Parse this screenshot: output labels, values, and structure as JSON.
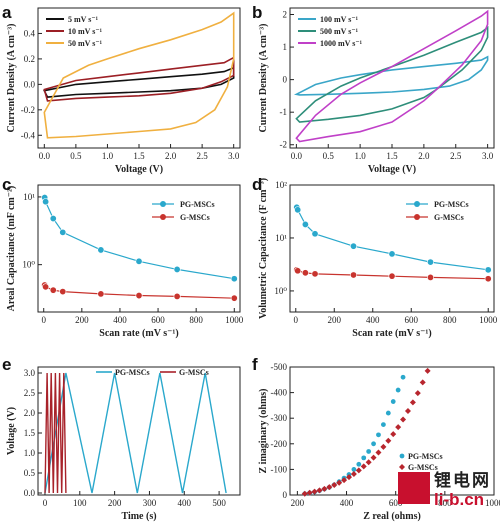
{
  "watermark": {
    "cn": "锂电网",
    "en": "li-b.cn"
  },
  "chart_data": [
    {
      "panel": "a",
      "type": "line",
      "subtype": "cv-loop",
      "xlabel": "Voltage (V)",
      "ylabel": "Current Density (A cm⁻³)",
      "xlim": [
        -0.1,
        3.1
      ],
      "ylim": [
        -0.5,
        0.6
      ],
      "xticks": [
        0.0,
        0.5,
        1.0,
        1.5,
        2.0,
        2.5,
        3.0
      ],
      "yticks": [
        -0.4,
        -0.2,
        0.0,
        0.2,
        0.4
      ],
      "legend_position": "top-left",
      "series": [
        {
          "name": "5 mV s⁻¹",
          "color": "#111111",
          "upper": [
            [
              0,
              -0.05
            ],
            [
              0.5,
              0.0
            ],
            [
              1.0,
              0.02
            ],
            [
              1.5,
              0.04
            ],
            [
              2.0,
              0.06
            ],
            [
              2.5,
              0.08
            ],
            [
              2.85,
              0.1
            ],
            [
              3.0,
              0.13
            ]
          ],
          "lower": [
            [
              3.0,
              0.05
            ],
            [
              2.8,
              0.0
            ],
            [
              2.5,
              -0.03
            ],
            [
              2.0,
              -0.05
            ],
            [
              1.5,
              -0.06
            ],
            [
              1.0,
              -0.07
            ],
            [
              0.5,
              -0.08
            ],
            [
              0.05,
              -0.1
            ],
            [
              0,
              -0.05
            ]
          ]
        },
        {
          "name": "10 mV s⁻¹",
          "color": "#9c1f25",
          "upper": [
            [
              0,
              -0.04
            ],
            [
              0.5,
              0.03
            ],
            [
              1.0,
              0.06
            ],
            [
              1.5,
              0.09
            ],
            [
              2.0,
              0.12
            ],
            [
              2.5,
              0.15
            ],
            [
              2.85,
              0.17
            ],
            [
              3.0,
              0.21
            ]
          ],
          "lower": [
            [
              3.0,
              0.07
            ],
            [
              2.8,
              0.02
            ],
            [
              2.5,
              -0.03
            ],
            [
              2.0,
              -0.07
            ],
            [
              1.5,
              -0.09
            ],
            [
              1.0,
              -0.1
            ],
            [
              0.5,
              -0.11
            ],
            [
              0.05,
              -0.13
            ],
            [
              0,
              -0.04
            ]
          ]
        },
        {
          "name": "50 mV s⁻¹",
          "color": "#f0b040",
          "upper": [
            [
              0,
              -0.22
            ],
            [
              0.3,
              0.05
            ],
            [
              0.7,
              0.15
            ],
            [
              1.0,
              0.2
            ],
            [
              1.5,
              0.28
            ],
            [
              2.0,
              0.35
            ],
            [
              2.5,
              0.43
            ],
            [
              2.8,
              0.49
            ],
            [
              3.0,
              0.56
            ]
          ],
          "lower": [
            [
              3.0,
              0.2
            ],
            [
              2.9,
              -0.02
            ],
            [
              2.7,
              -0.2
            ],
            [
              2.4,
              -0.3
            ],
            [
              2.0,
              -0.35
            ],
            [
              1.5,
              -0.37
            ],
            [
              1.0,
              -0.39
            ],
            [
              0.5,
              -0.41
            ],
            [
              0.05,
              -0.42
            ],
            [
              0,
              -0.22
            ]
          ]
        }
      ]
    },
    {
      "panel": "b",
      "type": "line",
      "subtype": "cv-loop",
      "xlabel": "Voltage (V)",
      "ylabel": "Current Density (A cm⁻³)",
      "xlim": [
        -0.1,
        3.1
      ],
      "ylim": [
        -2.1,
        2.2
      ],
      "xticks": [
        0.0,
        0.5,
        1.0,
        1.5,
        2.0,
        2.5,
        3.0
      ],
      "yticks": [
        -2,
        -1,
        0,
        1,
        2
      ],
      "legend_position": "top-left",
      "series": [
        {
          "name": "100 mV s⁻¹",
          "color": "#3aa6c8",
          "upper": [
            [
              0,
              -0.45
            ],
            [
              0.3,
              -0.15
            ],
            [
              0.7,
              0.05
            ],
            [
              1.0,
              0.15
            ],
            [
              1.5,
              0.3
            ],
            [
              2.0,
              0.4
            ],
            [
              2.5,
              0.5
            ],
            [
              2.9,
              0.6
            ],
            [
              3.0,
              0.7
            ]
          ],
          "lower": [
            [
              3.0,
              0.6
            ],
            [
              2.9,
              0.3
            ],
            [
              2.7,
              0.0
            ],
            [
              2.4,
              -0.2
            ],
            [
              2.0,
              -0.3
            ],
            [
              1.5,
              -0.38
            ],
            [
              1.0,
              -0.42
            ],
            [
              0.5,
              -0.45
            ],
            [
              0.05,
              -0.47
            ],
            [
              0,
              -0.45
            ]
          ]
        },
        {
          "name": "500 mV s⁻¹",
          "color": "#2e8e7a",
          "upper": [
            [
              0,
              -1.2
            ],
            [
              0.3,
              -0.65
            ],
            [
              0.7,
              -0.2
            ],
            [
              1.0,
              0.05
            ],
            [
              1.5,
              0.4
            ],
            [
              2.0,
              0.75
            ],
            [
              2.5,
              1.15
            ],
            [
              2.9,
              1.45
            ],
            [
              3.0,
              1.6
            ]
          ],
          "lower": [
            [
              3.0,
              1.3
            ],
            [
              2.9,
              0.9
            ],
            [
              2.6,
              0.3
            ],
            [
              2.2,
              -0.3
            ],
            [
              2.0,
              -0.55
            ],
            [
              1.5,
              -0.9
            ],
            [
              1.0,
              -1.1
            ],
            [
              0.5,
              -1.22
            ],
            [
              0.05,
              -1.3
            ],
            [
              0,
              -1.2
            ]
          ]
        },
        {
          "name": "1000 mV s⁻¹",
          "color": "#c040c8",
          "upper": [
            [
              0,
              -1.8
            ],
            [
              0.3,
              -1.1
            ],
            [
              0.7,
              -0.45
            ],
            [
              1.0,
              -0.1
            ],
            [
              1.5,
              0.4
            ],
            [
              2.0,
              0.95
            ],
            [
              2.5,
              1.5
            ],
            [
              2.9,
              1.95
            ],
            [
              3.0,
              2.1
            ]
          ],
          "lower": [
            [
              3.0,
              1.7
            ],
            [
              2.9,
              1.2
            ],
            [
              2.6,
              0.45
            ],
            [
              2.2,
              -0.3
            ],
            [
              2.0,
              -0.65
            ],
            [
              1.5,
              -1.3
            ],
            [
              1.0,
              -1.6
            ],
            [
              0.5,
              -1.75
            ],
            [
              0.05,
              -1.9
            ],
            [
              0,
              -1.8
            ]
          ]
        }
      ]
    },
    {
      "panel": "c",
      "type": "line",
      "yscale": "log",
      "xlabel": "Scan rate (mV s⁻¹)",
      "ylabel": "Areal Capacitance (mF cm⁻²)",
      "xlim": [
        -30,
        1030
      ],
      "ylim": [
        0.2,
        15
      ],
      "xticks": [
        0,
        200,
        400,
        600,
        800,
        1000
      ],
      "yticks": [
        1,
        10
      ],
      "ytick_labels": [
        "10⁰",
        "10¹"
      ],
      "legend_position": "top-right",
      "series": [
        {
          "name": "PG-MSCs",
          "color": "#2aa8cc",
          "x": [
            5,
            10,
            50,
            100,
            300,
            500,
            700,
            1000
          ],
          "y": [
            9.8,
            8.5,
            4.8,
            3.0,
            1.65,
            1.12,
            0.85,
            0.62
          ]
        },
        {
          "name": "G-MSCs",
          "color": "#c8342e",
          "x": [
            5,
            10,
            50,
            100,
            300,
            500,
            700,
            1000
          ],
          "y": [
            0.5,
            0.47,
            0.42,
            0.4,
            0.37,
            0.35,
            0.34,
            0.32
          ]
        }
      ]
    },
    {
      "panel": "d",
      "type": "line",
      "yscale": "log",
      "xlabel": "Scan rate (mV s⁻¹)",
      "ylabel": "Volumetric Capacitance (F cm⁻³)",
      "xlim": [
        -30,
        1030
      ],
      "ylim": [
        0.4,
        100
      ],
      "xticks": [
        0,
        200,
        400,
        600,
        800,
        1000
      ],
      "yticks": [
        1,
        10,
        100
      ],
      "ytick_labels": [
        "10⁰",
        "10¹",
        "10²"
      ],
      "legend_position": "top-right",
      "series": [
        {
          "name": "PG-MSCs",
          "color": "#2aa8cc",
          "x": [
            5,
            10,
            50,
            100,
            300,
            500,
            700,
            1000
          ],
          "y": [
            38,
            34,
            18,
            12,
            7,
            5,
            3.5,
            2.5
          ]
        },
        {
          "name": "G-MSCs",
          "color": "#c8342e",
          "x": [
            5,
            10,
            50,
            100,
            300,
            500,
            700,
            1000
          ],
          "y": [
            2.5,
            2.4,
            2.2,
            2.1,
            2.0,
            1.9,
            1.8,
            1.7
          ]
        }
      ]
    },
    {
      "panel": "e",
      "type": "line",
      "subtype": "gcd",
      "xlabel": "Time (s)",
      "ylabel": "Voltage (V)",
      "xlim": [
        -20,
        560
      ],
      "ylim": [
        -0.05,
        3.15
      ],
      "xticks": [
        0,
        100,
        200,
        300,
        400,
        500
      ],
      "yticks": [
        0.0,
        0.5,
        1.0,
        1.5,
        2.0,
        2.5,
        3.0
      ],
      "legend_position": "top",
      "series": [
        {
          "name": "PG-MSCs",
          "color": "#2aa8cc",
          "x": [
            0,
            60,
            135,
            200,
            265,
            330,
            395,
            460,
            520
          ],
          "y": [
            0,
            3,
            0,
            3,
            0,
            3,
            0,
            3,
            0
          ]
        },
        {
          "name": "G-MSCs",
          "color": "#a8222a",
          "x": [
            0,
            6,
            12,
            18,
            24,
            30,
            36,
            42,
            48,
            54,
            60
          ],
          "y": [
            0,
            3,
            0,
            3,
            0,
            3,
            0,
            3,
            0,
            3,
            0
          ]
        }
      ]
    },
    {
      "panel": "f",
      "type": "scatter",
      "subtype": "nyquist",
      "xlabel": "Z real (ohms)",
      "ylabel": "Z imaginary (ohms)",
      "xlim": [
        170,
        1000
      ],
      "ylim": [
        0,
        -500
      ],
      "xticks": [
        200,
        400,
        600,
        800,
        1000
      ],
      "yticks": [
        0,
        -100,
        -200,
        -300,
        -400,
        -500
      ],
      "legend_position": "bottom-right",
      "series": [
        {
          "name": "PG-MSCs",
          "color": "#2aa8cc",
          "x": [
            230,
            250,
            270,
            290,
            310,
            330,
            350,
            370,
            390,
            410,
            430,
            450,
            470,
            490,
            510,
            530,
            550,
            570,
            590,
            610,
            630
          ],
          "y": [
            -5,
            -8,
            -12,
            -17,
            -23,
            -30,
            -40,
            -52,
            -66,
            -80,
            -100,
            -120,
            -145,
            -170,
            -200,
            -235,
            -275,
            -320,
            -365,
            -410,
            -460
          ]
        },
        {
          "name": "G-MSCs",
          "color": "#b8262e",
          "x": [
            230,
            250,
            270,
            290,
            310,
            330,
            350,
            370,
            390,
            410,
            430,
            450,
            470,
            490,
            510,
            530,
            550,
            570,
            590,
            610,
            630,
            650,
            670,
            690,
            710,
            730
          ],
          "y": [
            -5,
            -9,
            -13,
            -18,
            -24,
            -31,
            -39,
            -48,
            -58,
            -70,
            -82,
            -96,
            -112,
            -128,
            -146,
            -166,
            -188,
            -212,
            -238,
            -265,
            -295,
            -328,
            -362,
            -398,
            -440,
            -485
          ]
        }
      ]
    }
  ]
}
